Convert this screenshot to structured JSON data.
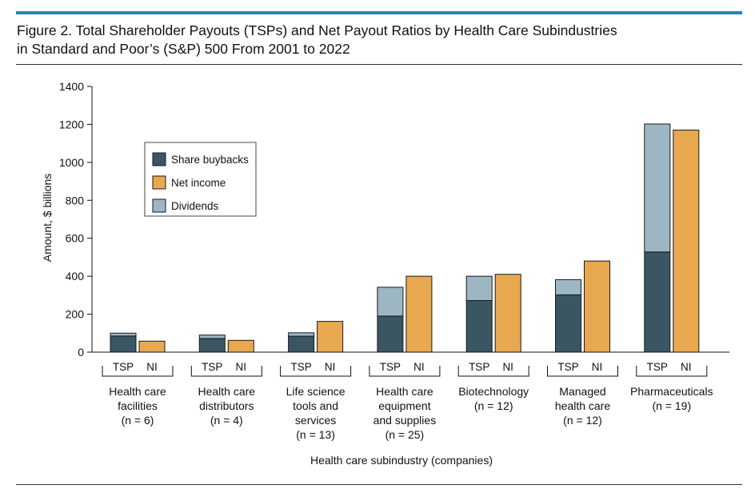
{
  "figure": {
    "title_line1": "Figure 2. Total Shareholder Payouts (TSPs) and Net Payout Ratios by Health Care Subindustries",
    "title_line2": "in Standard and Poor’s (S&P) 500 From 2001 to 2022"
  },
  "colors": {
    "buybacks": "#3a5663",
    "net_income": "#e8a850",
    "dividends": "#9db6c3",
    "accent_rule": "#1e88b6"
  },
  "chart_data": {
    "type": "bar",
    "stacked": true,
    "ylabel": "Amount, $ billions",
    "xlabel": "Health care subindustry (companies)",
    "ylim": [
      0,
      1400
    ],
    "yticks": [
      0,
      200,
      400,
      600,
      800,
      1000,
      1200,
      1400
    ],
    "bar_labels": [
      "TSP",
      "NI"
    ],
    "legend": {
      "position": "top-left",
      "entries": [
        {
          "key": "buybacks",
          "label": "Share buybacks"
        },
        {
          "key": "net_income",
          "label": "Net income"
        },
        {
          "key": "dividends",
          "label": "Dividends"
        }
      ]
    },
    "categories": [
      {
        "label_lines": [
          "Health care",
          "facilities",
          "(n = 6)"
        ],
        "buybacks": 85,
        "dividends": 15,
        "net_income": 58
      },
      {
        "label_lines": [
          "Health care",
          "distributors",
          "(n = 4)"
        ],
        "buybacks": 72,
        "dividends": 18,
        "net_income": 62
      },
      {
        "label_lines": [
          "Life science",
          "tools and",
          "services",
          "(n = 13)"
        ],
        "buybacks": 84,
        "dividends": 18,
        "net_income": 162
      },
      {
        "label_lines": [
          "Health care",
          "equipment",
          "and supplies",
          "(n = 25)"
        ],
        "buybacks": 190,
        "dividends": 152,
        "net_income": 400
      },
      {
        "label_lines": [
          "Biotechnology",
          "(n = 12)"
        ],
        "buybacks": 272,
        "dividends": 128,
        "net_income": 410
      },
      {
        "label_lines": [
          "Managed",
          "health care",
          "(n = 12)"
        ],
        "buybacks": 302,
        "dividends": 80,
        "net_income": 480
      },
      {
        "label_lines": [
          "Pharmaceuticals",
          "(n = 19)"
        ],
        "buybacks": 528,
        "dividends": 674,
        "net_income": 1170
      }
    ]
  }
}
